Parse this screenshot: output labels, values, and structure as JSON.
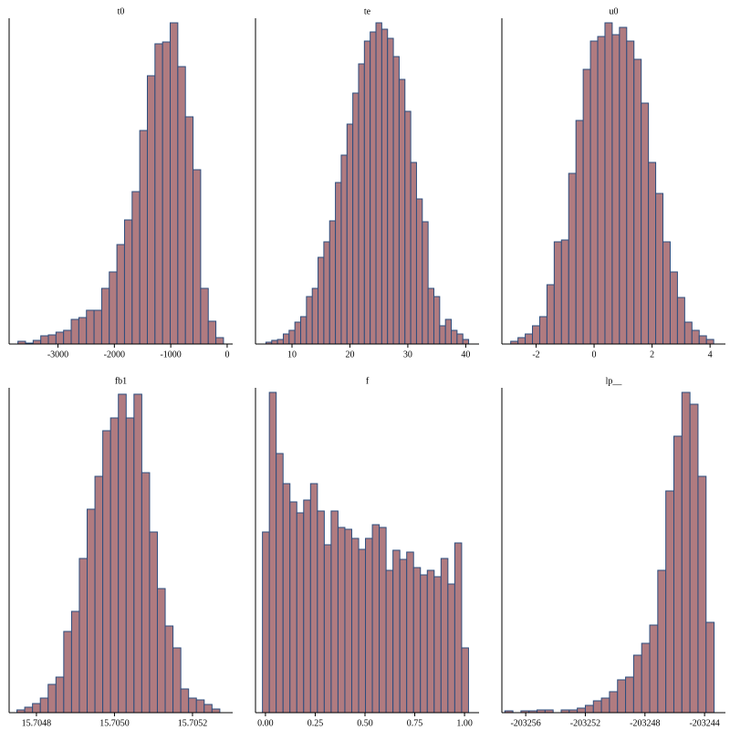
{
  "chart_data": [
    {
      "type": "histogram",
      "title": "t0",
      "color": "#b07b80",
      "edgecolor": "#2b4d7e",
      "bins": [
        -3710,
        -3575,
        -3440,
        -3305,
        -3170,
        -3035,
        -2900,
        -2765,
        -2630,
        -2495,
        -2360,
        -2225,
        -2090,
        -1955,
        -1820,
        -1685,
        -1550,
        -1415,
        -1280,
        -1145,
        -1010,
        -875,
        -740,
        -605,
        -470,
        -335,
        -200,
        -65
      ],
      "values": [
        3,
        1,
        4,
        9,
        10,
        13,
        15,
        27,
        29,
        37,
        37,
        61,
        79,
        109,
        136,
        167,
        234,
        294,
        329,
        331,
        352,
        304,
        249,
        191,
        61,
        25,
        7
      ],
      "xlim": [
        -3866,
        98
      ],
      "xticks": [
        -3000,
        -2000,
        -1000,
        0
      ],
      "ylim": [
        0,
        357
      ]
    },
    {
      "type": "histogram",
      "title": "te",
      "color": "#b07b80",
      "edgecolor": "#2b4d7e",
      "bins": [
        5.5,
        6.5,
        7.5,
        8.5,
        9.5,
        10.5,
        11.5,
        12.5,
        13.5,
        14.5,
        15.5,
        16.5,
        17.5,
        18.5,
        19.5,
        20.5,
        21.5,
        22.5,
        23.5,
        24.5,
        25.5,
        26.5,
        27.5,
        28.5,
        29.5,
        30.5,
        31.5,
        32.5,
        33.5,
        34.5,
        35.5,
        36.5,
        37.5,
        38.5,
        39.5,
        40.5
      ],
      "values": [
        2,
        4,
        5,
        11,
        15,
        24,
        30,
        52,
        61,
        95,
        112,
        135,
        177,
        207,
        241,
        275,
        307,
        332,
        342,
        352,
        345,
        335,
        315,
        290,
        255,
        199,
        159,
        134,
        61,
        52,
        20,
        27,
        15,
        11,
        5
      ],
      "xlim": [
        3.7,
        42.3
      ],
      "xticks": [
        10,
        20,
        30,
        40
      ],
      "ylim": [
        0,
        357
      ]
    },
    {
      "type": "histogram",
      "title": "u0",
      "color": "#b07b80",
      "edgecolor": "#2b4d7e",
      "bins": [
        -2.875,
        -2.625,
        -2.375,
        -2.125,
        -1.875,
        -1.625,
        -1.375,
        -1.125,
        -0.875,
        -0.625,
        -0.375,
        -0.125,
        0.125,
        0.375,
        0.625,
        0.875,
        1.125,
        1.375,
        1.625,
        1.875,
        2.125,
        2.375,
        2.625,
        2.875,
        3.125,
        3.375,
        3.625,
        3.875,
        4.125
      ],
      "values": [
        3,
        7,
        11,
        20,
        30,
        65,
        112,
        114,
        187,
        245,
        301,
        332,
        337,
        352,
        339,
        347,
        332,
        312,
        264,
        199,
        165,
        112,
        79,
        51,
        24,
        15,
        9,
        5
      ],
      "xlim": [
        -3.18,
        4.53
      ],
      "xticks": [
        -2,
        0,
        2,
        4
      ],
      "ylim": [
        0,
        357
      ]
    },
    {
      "type": "histogram",
      "title": "fb1",
      "color": "#b07b80",
      "edgecolor": "#2b4d7e",
      "bins": [
        15.70475,
        15.70477,
        15.70479,
        15.70481,
        15.70483,
        15.70485,
        15.70487,
        15.70489,
        15.70491,
        15.70493,
        15.70495,
        15.70497,
        15.70499,
        15.70501,
        15.70503,
        15.70505,
        15.70507,
        15.70509,
        15.70511,
        15.70513,
        15.70515,
        15.70517,
        15.70519,
        15.70521,
        15.70523,
        15.70525,
        15.70527
      ],
      "values": [
        3,
        6,
        10,
        16,
        31,
        39,
        89,
        111,
        169,
        223,
        259,
        309,
        323,
        349,
        323,
        349,
        263,
        198,
        136,
        95,
        71,
        26,
        16,
        14,
        9,
        4
      ],
      "xlim": [
        15.70473,
        15.705303
      ],
      "xticks": [
        15.7048,
        {
          "value": 15.705,
          "label": "15.7050"
        },
        15.7052
      ],
      "ylim": [
        0,
        356
      ]
    },
    {
      "type": "histogram",
      "title": "f",
      "color": "#b07b80",
      "edgecolor": "#2b4d7e",
      "bins": [
        -0.015,
        0.0195,
        0.054,
        0.0885,
        0.123,
        0.1575,
        0.192,
        0.2265,
        0.261,
        0.2955,
        0.33,
        0.3645,
        0.399,
        0.4335,
        0.468,
        0.5025,
        0.537,
        0.5715,
        0.606,
        0.6405,
        0.675,
        0.7095,
        0.744,
        0.7785,
        0.813,
        0.8475,
        0.882,
        0.9165,
        0.951,
        0.9855,
        1.02
      ],
      "values": [
        198,
        351,
        284,
        251,
        231,
        219,
        233,
        251,
        221,
        184,
        221,
        203,
        201,
        191,
        179,
        191,
        206,
        203,
        156,
        178,
        168,
        176,
        159,
        151,
        156,
        149,
        169,
        141,
        186,
        71
      ],
      "xlim": [
        -0.05,
        1.073
      ],
      "xticks": [
        {
          "value": 0,
          "label": "0.00"
        },
        {
          "value": 0.25,
          "label": "0.25"
        },
        {
          "value": 0.5,
          "label": "0.50"
        },
        {
          "value": 0.75,
          "label": "0.75"
        },
        {
          "value": 1,
          "label": "1.00"
        }
      ],
      "ylim": [
        0,
        356
      ]
    },
    {
      "type": "histogram",
      "title": "lp__",
      "color": "#b07b80",
      "edgecolor": "#2b4d7e",
      "bins": [
        -203257.4,
        -203256.86,
        -203256.32,
        -203255.78,
        -203255.24,
        -203254.7,
        -203254.16,
        -203253.62,
        -203253.08,
        -203252.54,
        -203252.0,
        -203251.46,
        -203250.92,
        -203250.38,
        -203249.84,
        -203249.3,
        -203248.76,
        -203248.22,
        -203247.68,
        -203247.14,
        -203246.6,
        -203246.06,
        -203245.52,
        -203244.98,
        -203244.44,
        -203243.9,
        -203243.36
      ],
      "values": [
        2,
        0,
        2,
        2,
        3,
        3,
        0,
        3,
        3,
        5,
        8,
        13,
        16,
        23,
        36,
        39,
        63,
        76,
        96,
        156,
        243,
        303,
        351,
        338,
        259,
        99
      ],
      "xlim": [
        -203257.6,
        -203242.6
      ],
      "xticks": [
        -203256,
        -203252,
        -203248,
        -203244
      ],
      "ylim": [
        0,
        356
      ]
    }
  ]
}
